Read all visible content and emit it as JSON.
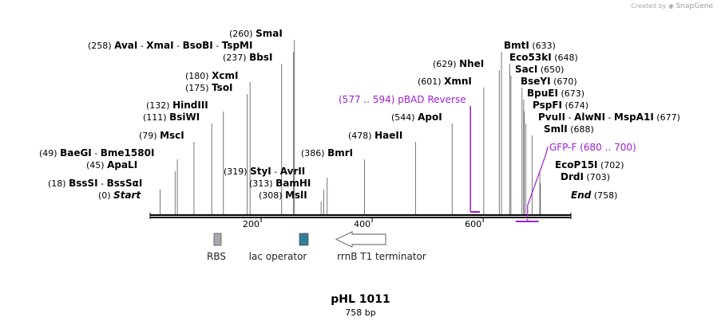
{
  "credit": {
    "created_by": "Created by",
    "brand": "SnapGene"
  },
  "plasmid": {
    "name": "pHL 1011",
    "length_label": "758 bp",
    "length": 758
  },
  "colors": {
    "backbone": "#000000",
    "feature_line": "#a01fd0",
    "rbs": "#a8a8b0",
    "lac_operator": "#2f7d99",
    "terminator": "#ffffff"
  },
  "ruler": {
    "ticks": [
      200,
      400,
      600
    ]
  },
  "sites": [
    {
      "name": "AvaI",
      "pos": 258,
      "pos_label": "(258)",
      "extra": [
        {
          "sep": "-",
          "name": "XmaI"
        },
        {
          "sep": "-",
          "name": "BsoBI"
        },
        {
          "sep": "-",
          "name": "TspMI"
        }
      ]
    },
    {
      "name": "SmaI",
      "pos": 260,
      "pos_label": "(260)",
      "extra": []
    },
    {
      "name": "BbsI",
      "pos": 237,
      "pos_label": "(237)",
      "extra": []
    },
    {
      "name": "XcmI",
      "pos": 180,
      "pos_label": "(180)",
      "extra": []
    },
    {
      "name": "TsoI",
      "pos": 175,
      "pos_label": "(175)",
      "extra": []
    },
    {
      "name": "HindIII",
      "pos": 132,
      "pos_label": "(132)",
      "extra": []
    },
    {
      "name": "BsiWI",
      "pos": 111,
      "pos_label": "(111)",
      "extra": []
    },
    {
      "name": "MscI",
      "pos": 79,
      "pos_label": "(79)",
      "extra": []
    },
    {
      "name": "BaeGI",
      "pos": 49,
      "pos_label": "(49)",
      "extra": [
        {
          "sep": "-",
          "name": "Bme1580I"
        }
      ]
    },
    {
      "name": "ApaLI",
      "pos": 45,
      "pos_label": "(45)",
      "extra": []
    },
    {
      "name": "BssSI",
      "pos": 18,
      "pos_label": "(18)",
      "extra": [
        {
          "sep": "-",
          "name": "BssSαI"
        }
      ]
    },
    {
      "name": "Start",
      "pos": 0,
      "pos_label": "(0)",
      "extra": [],
      "italic": true
    },
    {
      "name": "StyI",
      "pos": 319,
      "pos_label": "(319)",
      "extra": [
        {
          "sep": "-",
          "name": "AvrII"
        }
      ]
    },
    {
      "name": "BamHI",
      "pos": 313,
      "pos_label": "(313)",
      "extra": []
    },
    {
      "name": "MslI",
      "pos": 308,
      "pos_label": "(308)",
      "extra": []
    },
    {
      "name": "BmrI",
      "pos": 386,
      "pos_label": "(386)",
      "extra": []
    },
    {
      "name": "HaeII",
      "pos": 478,
      "pos_label": "(478)",
      "extra": []
    },
    {
      "name": "ApoI",
      "pos": 544,
      "pos_label": "(544)",
      "extra": []
    },
    {
      "name": "XmnI",
      "pos": 601,
      "pos_label": "(601)",
      "extra": []
    },
    {
      "name": "NheI",
      "pos": 629,
      "pos_label": "(629)",
      "extra": []
    },
    {
      "name": "BmtI",
      "pos": 633,
      "pos_label": "(633)",
      "extra": []
    },
    {
      "name": "Eco53kI",
      "pos": 648,
      "pos_label": "(648)",
      "extra": []
    },
    {
      "name": "SacI",
      "pos": 650,
      "pos_label": "(650)",
      "extra": []
    },
    {
      "name": "BseYI",
      "pos": 670,
      "pos_label": "(670)",
      "extra": []
    },
    {
      "name": "BpuEI",
      "pos": 673,
      "pos_label": "(673)",
      "extra": []
    },
    {
      "name": "PspFI",
      "pos": 674,
      "pos_label": "(674)",
      "extra": []
    },
    {
      "name": "PvuII",
      "pos": 677,
      "pos_label": "(677)",
      "extra": [
        {
          "sep": "-",
          "name": "AlwNI"
        },
        {
          "sep": "-",
          "name": "MspA1I"
        }
      ]
    },
    {
      "name": "SmlI",
      "pos": 688,
      "pos_label": "(688)",
      "extra": []
    },
    {
      "name": "EcoP15I",
      "pos": 702,
      "pos_label": "(702)",
      "extra": []
    },
    {
      "name": "DrdI",
      "pos": 703,
      "pos_label": "(703)",
      "extra": []
    },
    {
      "name": "End",
      "pos": 758,
      "pos_label": "(758)",
      "extra": [],
      "italic": true
    }
  ],
  "primers": [
    {
      "name": "pBAD Reverse",
      "range_label": "(577 .. 594)",
      "start": 577,
      "end": 594,
      "strand": "reverse"
    },
    {
      "name": "GFP-F",
      "range_label": "(680 .. 700)",
      "start": 680,
      "end": 700,
      "strand": "forward"
    }
  ],
  "features": [
    {
      "name": "RBS",
      "type": "box"
    },
    {
      "name": "lac operator",
      "type": "box"
    },
    {
      "name": "rrnB T1 terminator",
      "type": "arrow-left"
    }
  ]
}
